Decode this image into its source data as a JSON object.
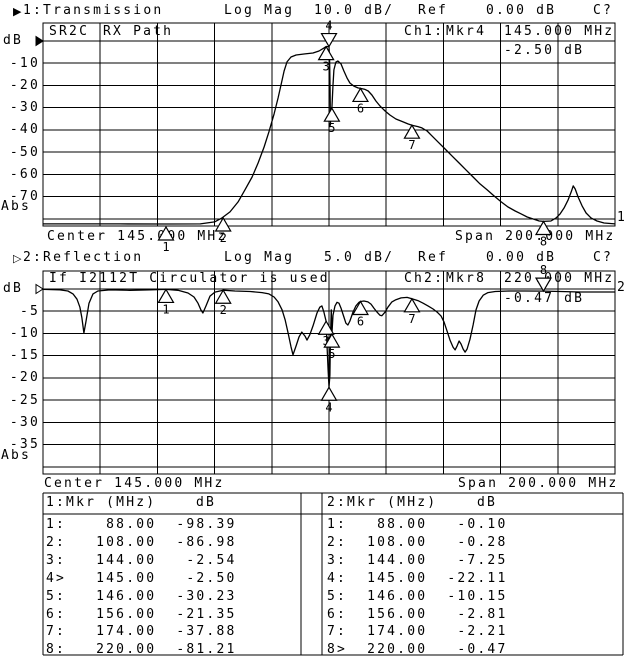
{
  "charts": [
    {
      "title": {
        "num": "1:Transmission",
        "mag": "Log Mag",
        "scale": "10.0 dB/",
        "ref": "Ref",
        "ref_val": "0.00 dB",
        "cal": "C?"
      },
      "note_a": "SR2C",
      "note_b": "RX Path",
      "readout": {
        "ch": "Ch1:",
        "mkr": "Mkr4",
        "freq": "145.000 MHz",
        "val": "-2.50 dB"
      },
      "yaxis": {
        "unit": "dB",
        "ticks": [
          "-10",
          "-20",
          "-30",
          "-40",
          "-50",
          "-60",
          "-70"
        ],
        "abs": "Abs"
      },
      "center": "Center 145.000 MHz",
      "span": "Span 200.000 MHz",
      "trace_no": "1"
    },
    {
      "title": {
        "num": "2:Reflection",
        "mag": "Log Mag",
        "scale": "5.0 dB/",
        "ref": "Ref",
        "ref_val": "0.00 dB",
        "cal": "C?"
      },
      "note_a": "If I2112T Circulator is used",
      "note_b": "",
      "readout": {
        "ch": "Ch2:",
        "mkr": "Mkr8",
        "freq": "220.000 MHz",
        "val": "-0.47 dB"
      },
      "yaxis": {
        "unit": "dB",
        "ticks": [
          "-5",
          "-10",
          "-15",
          "-20",
          "-25",
          "-30",
          "-35"
        ],
        "abs": "Abs"
      },
      "center": "Center 145.000 MHz",
      "span": "Span 200.000 MHz",
      "trace_no": "2"
    }
  ],
  "tables": {
    "left": {
      "header": "1:Mkr (MHz)",
      "unit": "dB",
      "rows": [
        [
          "1",
          ":",
          "88.00",
          "-98.39"
        ],
        [
          "2",
          ":",
          "108.00",
          "-86.98"
        ],
        [
          "3",
          ":",
          "144.00",
          "-2.54"
        ],
        [
          "4",
          ">",
          "145.00",
          "-2.50"
        ],
        [
          "5",
          ":",
          "146.00",
          "-30.23"
        ],
        [
          "6",
          ":",
          "156.00",
          "-21.35"
        ],
        [
          "7",
          ":",
          "174.00",
          "-37.88"
        ],
        [
          "8",
          ":",
          "220.00",
          "-81.21"
        ]
      ]
    },
    "right": {
      "header": "2:Mkr (MHz)",
      "unit": "dB",
      "rows": [
        [
          "1",
          ":",
          "88.00",
          "-0.10"
        ],
        [
          "2",
          ":",
          "108.00",
          "-0.28"
        ],
        [
          "3",
          ":",
          "144.00",
          "-7.25"
        ],
        [
          "4",
          ":",
          "145.00",
          "-22.11"
        ],
        [
          "5",
          ":",
          "146.00",
          "-10.15"
        ],
        [
          "6",
          ":",
          "156.00",
          "-2.81"
        ],
        [
          "7",
          ":",
          "174.00",
          "-2.21"
        ],
        [
          "8",
          ">",
          "220.00",
          "-0.47"
        ]
      ]
    }
  },
  "chart_data": [
    {
      "type": "line",
      "title": "1:Transmission  Log Mag 10.0 dB/ Ref 0.00 dB",
      "xlabel": "Frequency (MHz), Center 145.000 MHz, Span 200.000 MHz",
      "ylabel": "dB",
      "x_range": [
        45,
        245
      ],
      "ylim": [
        -80,
        0
      ],
      "db_per_div": 10,
      "grid": true,
      "markers": [
        {
          "n": "1",
          "mhz": 88.0,
          "db": -98.39,
          "clip": "below"
        },
        {
          "n": "2",
          "mhz": 108.0,
          "db": -86.98,
          "clip": "edge"
        },
        {
          "n": "3",
          "mhz": 144.0,
          "db": -2.54
        },
        {
          "n": "4",
          "mhz": 145.0,
          "db": -2.5,
          "active": true
        },
        {
          "n": "5",
          "mhz": 146.0,
          "db": -30.23
        },
        {
          "n": "6",
          "mhz": 156.0,
          "db": -21.35
        },
        {
          "n": "7",
          "mhz": 174.0,
          "db": -37.88
        },
        {
          "n": "8",
          "mhz": 220.0,
          "db": -81.21
        }
      ],
      "trace": [
        [
          45,
          -82.3
        ],
        [
          72,
          -82.3
        ],
        [
          88,
          -82.6
        ],
        [
          100,
          -82.3
        ],
        [
          105,
          -81.4
        ],
        [
          107.6,
          -79.6
        ],
        [
          110.4,
          -76.9
        ],
        [
          113.2,
          -72.4
        ],
        [
          115.6,
          -67
        ],
        [
          118.1,
          -61.2
        ],
        [
          120.2,
          -54.9
        ],
        [
          122.3,
          -47.7
        ],
        [
          124,
          -40.9
        ],
        [
          125.8,
          -32.8
        ],
        [
          127.2,
          -25.6
        ],
        [
          128.2,
          -19.8
        ],
        [
          129.3,
          -13.5
        ],
        [
          130.3,
          -9.4
        ],
        [
          131.7,
          -7.2
        ],
        [
          133.5,
          -6.3
        ],
        [
          136.6,
          -5.8
        ],
        [
          139.4,
          -5.4
        ],
        [
          141.5,
          -4.5
        ],
        [
          143.3,
          -3.1
        ],
        [
          144,
          -2.54
        ],
        [
          145,
          -2.5
        ],
        [
          145.2,
          -8.5
        ],
        [
          145.4,
          -22
        ],
        [
          145.5,
          -37.8
        ],
        [
          145.7,
          -30.2
        ],
        [
          146,
          -30.2
        ],
        [
          146.4,
          -19.8
        ],
        [
          146.7,
          -13
        ],
        [
          147.4,
          -9.5
        ],
        [
          148.1,
          -9
        ],
        [
          149.2,
          -10.3
        ],
        [
          150.2,
          -13.5
        ],
        [
          151.3,
          -16.6
        ],
        [
          152.3,
          -18.9
        ],
        [
          153.7,
          -20.3
        ],
        [
          155.1,
          -21.1
        ],
        [
          156,
          -21.35
        ],
        [
          157.6,
          -21.8
        ],
        [
          158.7,
          -22.5
        ],
        [
          160,
          -24.3
        ],
        [
          161.4,
          -27
        ],
        [
          162.8,
          -29.2
        ],
        [
          164.6,
          -31.5
        ],
        [
          166.3,
          -33.3
        ],
        [
          168.4,
          -35.1
        ],
        [
          170.9,
          -36.4
        ],
        [
          172.6,
          -37.3
        ],
        [
          174,
          -37.88
        ],
        [
          176.1,
          -38.5
        ],
        [
          177.5,
          -39.1
        ],
        [
          179.3,
          -40.5
        ],
        [
          181,
          -42.7
        ],
        [
          183.1,
          -45.4
        ],
        [
          185.6,
          -48.6
        ],
        [
          188,
          -51.7
        ],
        [
          190.5,
          -54.9
        ],
        [
          192.9,
          -58
        ],
        [
          195.4,
          -61.2
        ],
        [
          197.8,
          -64.3
        ],
        [
          200.3,
          -67
        ],
        [
          202.7,
          -69.7
        ],
        [
          205.2,
          -72.4
        ],
        [
          207.6,
          -74.7
        ],
        [
          210.1,
          -76.5
        ],
        [
          212.2,
          -77.8
        ],
        [
          214.3,
          -79.2
        ],
        [
          216.4,
          -80.1
        ],
        [
          218.5,
          -81
        ],
        [
          220,
          -81.2
        ],
        [
          222.6,
          -81
        ],
        [
          224.4,
          -79.6
        ],
        [
          225.8,
          -77.8
        ],
        [
          227.2,
          -75.1
        ],
        [
          228.6,
          -71.5
        ],
        [
          229.7,
          -67.9
        ],
        [
          230.4,
          -65.2
        ],
        [
          231.1,
          -66.6
        ],
        [
          232.1,
          -70.2
        ],
        [
          233.5,
          -74.2
        ],
        [
          234.9,
          -77.4
        ],
        [
          236.6,
          -79.6
        ],
        [
          238.7,
          -81
        ],
        [
          241.2,
          -81.9
        ],
        [
          245,
          -82.3
        ]
      ]
    },
    {
      "type": "line",
      "title": "2:Reflection  Log Mag 5.0 dB/ Ref 0.00 dB",
      "xlabel": "Frequency (MHz), Center 145.000 MHz, Span 200.000 MHz",
      "ylabel": "dB",
      "x_range": [
        45,
        245
      ],
      "ylim": [
        -40,
        0
      ],
      "db_per_div": 5,
      "grid": true,
      "markers": [
        {
          "n": "1",
          "mhz": 88.0,
          "db": -0.1
        },
        {
          "n": "2",
          "mhz": 108.0,
          "db": -0.28
        },
        {
          "n": "3",
          "mhz": 144.0,
          "db": -7.25
        },
        {
          "n": "4",
          "mhz": 145.0,
          "db": -22.11
        },
        {
          "n": "5",
          "mhz": 146.0,
          "db": -10.15
        },
        {
          "n": "6",
          "mhz": 156.0,
          "db": -2.81
        },
        {
          "n": "7",
          "mhz": 174.0,
          "db": -2.21
        },
        {
          "n": "8",
          "mhz": 220.0,
          "db": -0.47,
          "active": true
        }
      ],
      "trace": [
        [
          45,
          -0.1
        ],
        [
          50.9,
          -0.2
        ],
        [
          53.7,
          -0.45
        ],
        [
          55.5,
          -1.1
        ],
        [
          56.9,
          -2.3
        ],
        [
          57.9,
          -4.1
        ],
        [
          58.6,
          -6.5
        ],
        [
          59.3,
          -9.9
        ],
        [
          60,
          -7.4
        ],
        [
          61.1,
          -3.2
        ],
        [
          62.5,
          -1.1
        ],
        [
          64.2,
          -0.45
        ],
        [
          68.4,
          -0.2
        ],
        [
          75.4,
          -0.3
        ],
        [
          82.4,
          -0.2
        ],
        [
          88,
          -0.1
        ],
        [
          92.2,
          -0.3
        ],
        [
          95.7,
          -0.9
        ],
        [
          97.8,
          -1.8
        ],
        [
          99.2,
          -3.2
        ],
        [
          100.2,
          -4.7
        ],
        [
          100.9,
          -5.4
        ],
        [
          102,
          -3.8
        ],
        [
          103.4,
          -1.6
        ],
        [
          105.1,
          -0.7
        ],
        [
          108,
          -0.28
        ],
        [
          112.1,
          -0.45
        ],
        [
          117.4,
          -0.56
        ],
        [
          121.6,
          -0.8
        ],
        [
          124,
          -1.1
        ],
        [
          125.8,
          -1.8
        ],
        [
          127.2,
          -2.9
        ],
        [
          128.6,
          -4.7
        ],
        [
          129.7,
          -7
        ],
        [
          130.7,
          -9.9
        ],
        [
          131.7,
          -13
        ],
        [
          132.4,
          -14.8
        ],
        [
          133.5,
          -12.8
        ],
        [
          134.5,
          -10.8
        ],
        [
          135.5,
          -9.7
        ],
        [
          136.6,
          -10.6
        ],
        [
          137.3,
          -11.5
        ],
        [
          138.3,
          -10.3
        ],
        [
          139.4,
          -8.3
        ],
        [
          140.8,
          -5.4
        ],
        [
          141.8,
          -4.1
        ],
        [
          142.5,
          -3.8
        ],
        [
          143.2,
          -5.2
        ],
        [
          144,
          -7.25
        ],
        [
          144.3,
          -12.6
        ],
        [
          144.7,
          -18.2
        ],
        [
          145,
          -22.11
        ],
        [
          145.3,
          -19.4
        ],
        [
          145.5,
          -11.5
        ],
        [
          145.8,
          -4.7
        ],
        [
          146,
          -10.15
        ],
        [
          146.4,
          -5.9
        ],
        [
          147.1,
          -3.8
        ],
        [
          147.8,
          -3
        ],
        [
          148.5,
          -3.2
        ],
        [
          149.2,
          -4.3
        ],
        [
          150.2,
          -6.3
        ],
        [
          150.9,
          -7.7
        ],
        [
          151.6,
          -8.1
        ],
        [
          152.3,
          -7.2
        ],
        [
          153.4,
          -5.2
        ],
        [
          154.4,
          -3.8
        ],
        [
          155.5,
          -3
        ],
        [
          156,
          -2.81
        ],
        [
          157.2,
          -2.7
        ],
        [
          158.6,
          -2.9
        ],
        [
          159.7,
          -3.4
        ],
        [
          160.7,
          -4.3
        ],
        [
          161.8,
          -5.2
        ],
        [
          162.8,
          -5.9
        ],
        [
          163.5,
          -6
        ],
        [
          164.6,
          -5.2
        ],
        [
          165.6,
          -4.1
        ],
        [
          167,
          -2.9
        ],
        [
          168.4,
          -2.4
        ],
        [
          170.2,
          -2
        ],
        [
          172.3,
          -1.9
        ],
        [
          174,
          -2.21
        ],
        [
          176.1,
          -2.6
        ],
        [
          177.9,
          -3.2
        ],
        [
          179.6,
          -3.8
        ],
        [
          181.4,
          -4.5
        ],
        [
          182.8,
          -5.2
        ],
        [
          184.2,
          -6.1
        ],
        [
          185.2,
          -7.4
        ],
        [
          186.3,
          -9.5
        ],
        [
          187.3,
          -11.5
        ],
        [
          188.4,
          -13.1
        ],
        [
          189.1,
          -13.7
        ],
        [
          189.8,
          -12.8
        ],
        [
          190.5,
          -11.7
        ],
        [
          191.2,
          -12.4
        ],
        [
          191.9,
          -13.5
        ],
        [
          192.6,
          -14.2
        ],
        [
          193.3,
          -13.5
        ],
        [
          194.3,
          -11.3
        ],
        [
          195.4,
          -8.1
        ],
        [
          196.4,
          -4.7
        ],
        [
          197.5,
          -2.7
        ],
        [
          198.9,
          -1.4
        ],
        [
          200.6,
          -0.8
        ],
        [
          203.1,
          -0.56
        ],
        [
          208.3,
          -0.45
        ],
        [
          213.6,
          -0.45
        ],
        [
          220,
          -0.47
        ],
        [
          225.8,
          -0.56
        ],
        [
          232.8,
          -0.67
        ],
        [
          239.8,
          -0.67
        ],
        [
          245,
          -0.67
        ]
      ]
    }
  ]
}
